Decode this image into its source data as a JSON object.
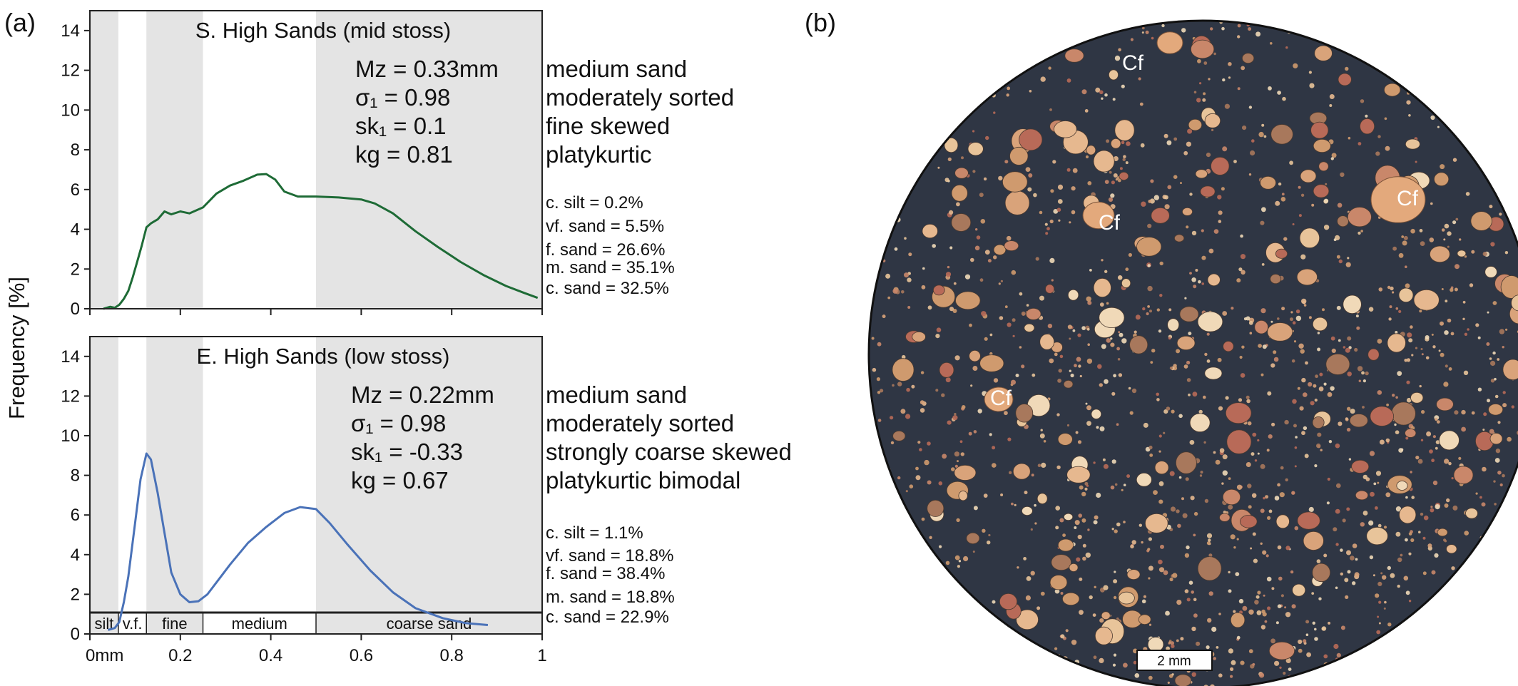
{
  "panel_labels": {
    "a": "(a)",
    "b": "(b)"
  },
  "y_axis_label": "Frequency [%]",
  "size_bands": [
    {
      "label": "silt",
      "from": 0,
      "to": 0.063,
      "shaded": true
    },
    {
      "label": "v.f.",
      "from": 0.063,
      "to": 0.125,
      "shaded": false
    },
    {
      "label": "fine",
      "from": 0.125,
      "to": 0.25,
      "shaded": true
    },
    {
      "label": "medium",
      "from": 0.25,
      "to": 0.5,
      "shaded": false
    },
    {
      "label": "coarse sand",
      "from": 0.5,
      "to": 1.0,
      "shaded": true
    }
  ],
  "x_tick_labels": [
    "0mm",
    "0.2",
    "0.4",
    "0.6",
    "0.8",
    "1"
  ],
  "y_tick_labels": [
    "0",
    "2",
    "4",
    "6",
    "8",
    "10",
    "12",
    "14"
  ],
  "chart_data": [
    {
      "type": "line",
      "title": "S. High Sands (mid stoss)",
      "xlabel": "",
      "ylabel": "Frequency [%]",
      "xlim": [
        0,
        1
      ],
      "ylim": [
        0,
        15
      ],
      "y_ticks": [
        0,
        2,
        4,
        6,
        8,
        10,
        12,
        14
      ],
      "x_ticks": [
        0,
        0.2,
        0.4,
        0.6,
        0.8,
        1.0
      ],
      "grid": false,
      "color": "#1e6b36",
      "series": [
        {
          "x": [
            0.03,
            0.045,
            0.055,
            0.065,
            0.075,
            0.085,
            0.095,
            0.105,
            0.115,
            0.125,
            0.135,
            0.15,
            0.165,
            0.18,
            0.2,
            0.22,
            0.25,
            0.28,
            0.31,
            0.34,
            0.37,
            0.39,
            0.41,
            0.43,
            0.46,
            0.5,
            0.55,
            0.6,
            0.63,
            0.67,
            0.72,
            0.77,
            0.82,
            0.87,
            0.92,
            0.96,
            0.99
          ],
          "y": [
            0.0,
            0.1,
            0.05,
            0.2,
            0.5,
            0.9,
            1.6,
            2.4,
            3.2,
            4.1,
            4.3,
            4.5,
            4.9,
            4.75,
            4.9,
            4.8,
            5.1,
            5.8,
            6.2,
            6.45,
            6.75,
            6.78,
            6.5,
            5.9,
            5.65,
            5.65,
            5.6,
            5.5,
            5.3,
            4.8,
            3.9,
            3.1,
            2.35,
            1.7,
            1.15,
            0.8,
            0.55
          ]
        }
      ],
      "stats": [
        "Mz = 0.33mm",
        "σ₁ = 0.98",
        "sk₁ = 0.1",
        "kg = 0.81"
      ],
      "descriptions": [
        "medium sand",
        "moderately sorted",
        "fine skewed",
        "platykurtic"
      ],
      "fractions": [
        "c. silt = 0.2%",
        "vf. sand = 5.5%",
        "f. sand = 26.6%",
        "m. sand = 35.1%",
        "c. sand = 32.5%"
      ]
    },
    {
      "type": "line",
      "title": "E. High Sands (low stoss)",
      "xlabel": "",
      "ylabel": "Frequency [%]",
      "xlim": [
        0,
        1
      ],
      "ylim": [
        0,
        15
      ],
      "y_ticks": [
        0,
        2,
        4,
        6,
        8,
        10,
        12,
        14
      ],
      "x_ticks": [
        0,
        0.2,
        0.4,
        0.6,
        0.8,
        1.0
      ],
      "grid": false,
      "color": "#4a72b8",
      "series": [
        {
          "x": [
            0.04,
            0.055,
            0.065,
            0.075,
            0.085,
            0.1,
            0.112,
            0.125,
            0.135,
            0.15,
            0.165,
            0.18,
            0.2,
            0.22,
            0.24,
            0.26,
            0.28,
            0.31,
            0.35,
            0.39,
            0.43,
            0.465,
            0.5,
            0.53,
            0.57,
            0.62,
            0.67,
            0.72,
            0.78,
            0.83,
            0.88
          ],
          "y": [
            0.2,
            0.3,
            0.6,
            1.6,
            2.9,
            5.6,
            7.8,
            9.1,
            8.8,
            7.1,
            5.1,
            3.1,
            2.0,
            1.6,
            1.65,
            2.0,
            2.6,
            3.5,
            4.6,
            5.4,
            6.1,
            6.4,
            6.3,
            5.6,
            4.5,
            3.2,
            2.1,
            1.3,
            0.8,
            0.55,
            0.45
          ]
        }
      ],
      "stats": [
        "Mz = 0.22mm",
        "σ₁ = 0.98",
        "sk₁ = -0.33",
        "kg = 0.67"
      ],
      "descriptions": [
        "medium sand",
        "moderately sorted",
        "strongly coarse skewed",
        "platykurtic bimodal"
      ],
      "fractions": [
        "c. silt = 1.1%",
        "vf. sand = 18.8%",
        "f. sand = 38.4%",
        "m. sand = 18.8%",
        "c. sand = 22.9%"
      ]
    }
  ],
  "photo": {
    "grain_labels": [
      "Cf",
      "Cf",
      "Cf",
      "Cf"
    ],
    "scale_bar_label": "2 mm",
    "background_color": "#2f3644",
    "grain_colors": [
      "#e8c49a",
      "#d9a37a",
      "#c9876a",
      "#b86a58",
      "#f0d9b8",
      "#a8785c",
      "#e6b88f",
      "#cf9a6e"
    ]
  }
}
